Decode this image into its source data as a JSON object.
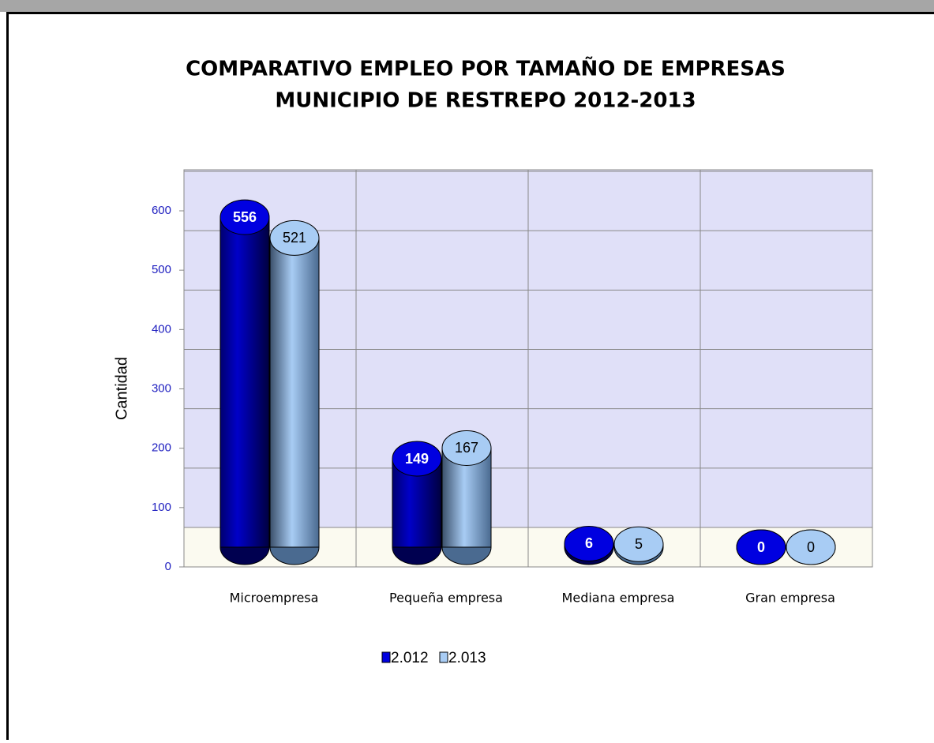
{
  "chart_data": {
    "type": "bar",
    "title": "COMPARATIVO EMPLEO POR TAMAÑO DE EMPRESAS",
    "subtitle": "MUNICIPIO DE RESTREPO 2012-2013",
    "y_label": "Cantidad",
    "categories": [
      "Microempresa",
      "Pequeña empresa",
      "Mediana empresa",
      "Gran empresa"
    ],
    "series": [
      {
        "name": "2.012",
        "color": "#0000e0",
        "values": [
          556,
          149,
          6,
          0
        ]
      },
      {
        "name": "2.013",
        "color": "#a8ccf4",
        "values": [
          521,
          167,
          5,
          0
        ]
      }
    ],
    "ylim": [
      0,
      600
    ],
    "yticks": [
      0,
      100,
      200,
      300,
      400,
      500,
      600
    ],
    "grid": true,
    "legend": "bottom"
  }
}
